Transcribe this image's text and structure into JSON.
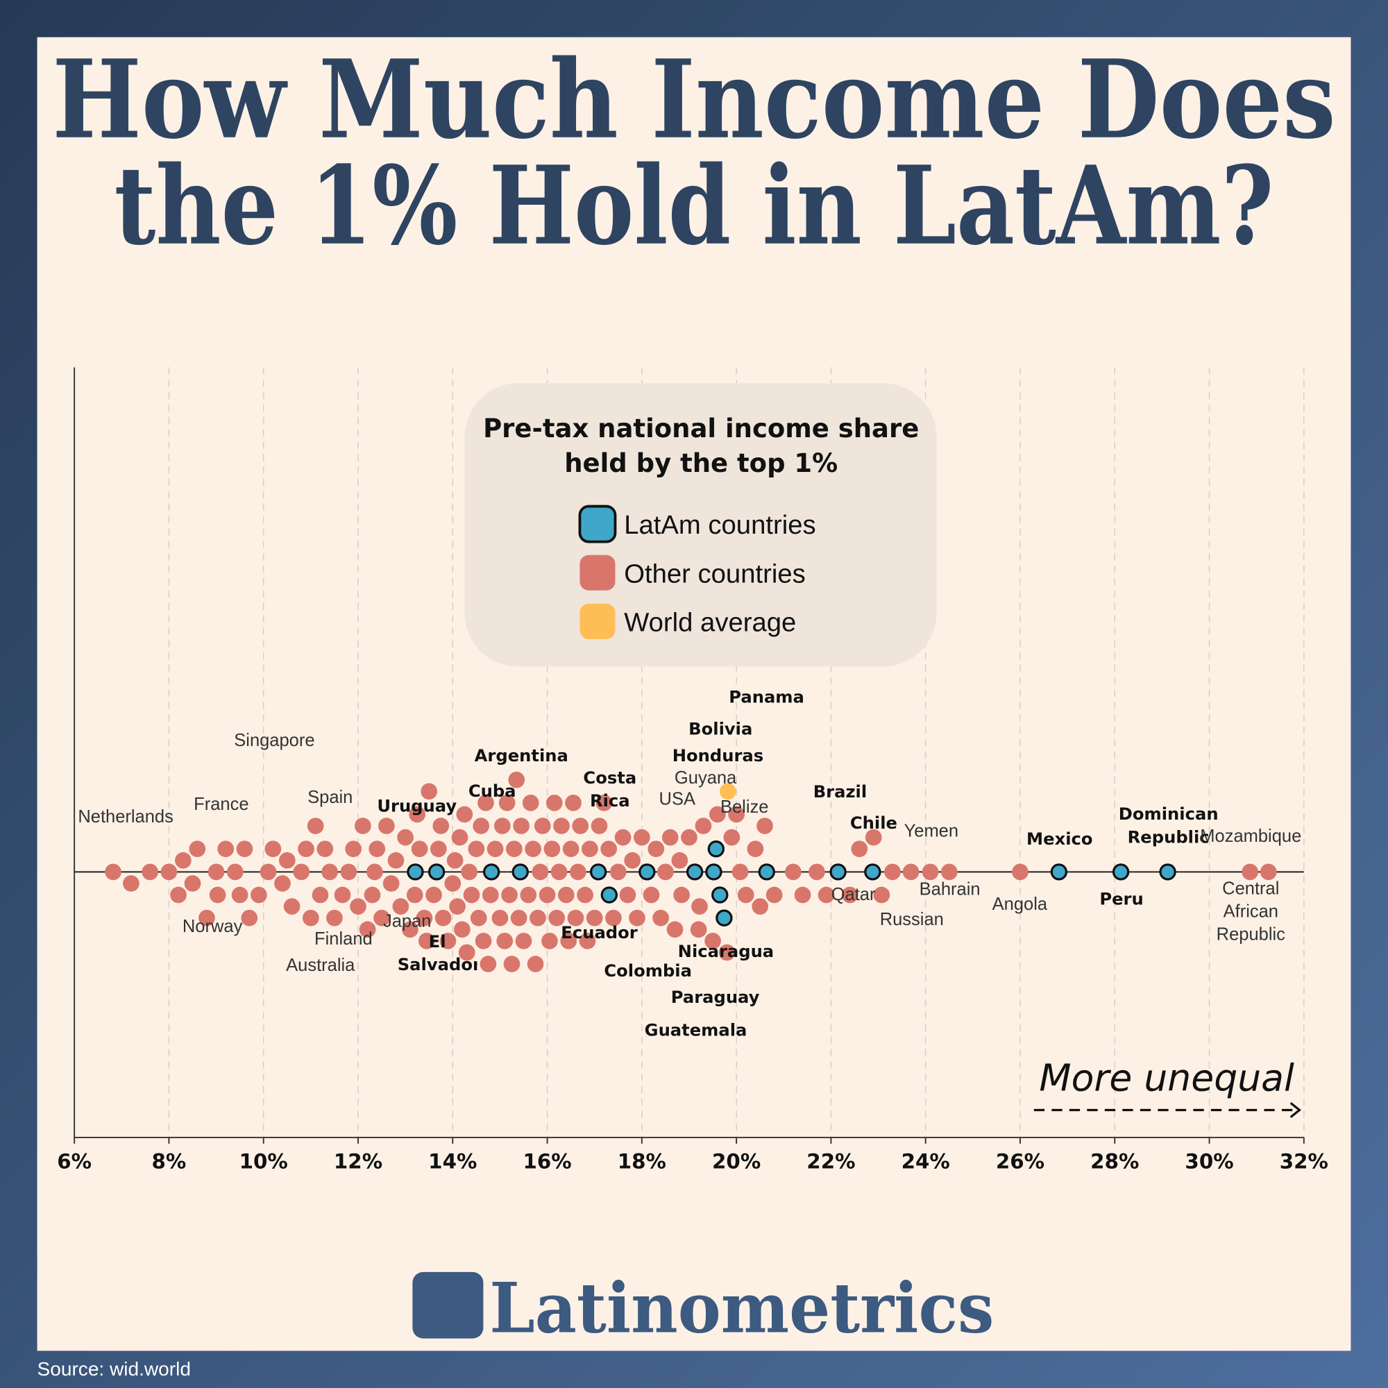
{
  "title_lines": [
    "How Much Income Does",
    "the 1% Hold in LatAm?"
  ],
  "chart_data": {
    "type": "beeswarm",
    "legend_title_lines": [
      "Pre-tax national income share",
      "held by the top 1%"
    ],
    "annotation": "More unequal",
    "xlim": [
      6,
      32
    ],
    "xticks": [
      {
        "value": 6,
        "label": "6%"
      },
      {
        "value": 8,
        "label": "8%"
      },
      {
        "value": 10,
        "label": "10%"
      },
      {
        "value": 12,
        "label": "12%"
      },
      {
        "value": 14,
        "label": "14%"
      },
      {
        "value": 16,
        "label": "16%"
      },
      {
        "value": 18,
        "label": "18%"
      },
      {
        "value": 20,
        "label": "20%"
      },
      {
        "value": 22,
        "label": "22%"
      },
      {
        "value": 24,
        "label": "24%"
      },
      {
        "value": 26,
        "label": "26%"
      },
      {
        "value": 28,
        "label": "28%"
      },
      {
        "value": 30,
        "label": "30%"
      },
      {
        "value": 32,
        "label": "32%"
      }
    ],
    "grid": true,
    "series": [
      {
        "name": "LatAm countries",
        "color": "#3fa7c9",
        "points": [
          {
            "label": "Uruguay",
            "value": 13.21
          },
          {
            "label": "El Salvador",
            "value": 13.66
          },
          {
            "label": "Cuba",
            "value": 14.82
          },
          {
            "label": "Argentina",
            "value": 15.43
          },
          {
            "label": "Ecuador",
            "value": 17.08
          },
          {
            "label": "Costa Rica",
            "value": 17.31
          },
          {
            "label": "Colombia",
            "value": 18.11
          },
          {
            "label": "Guatemala",
            "value": 19.12
          },
          {
            "label": "Paraguay",
            "value": 19.52
          },
          {
            "label": "Bolivia",
            "value": 19.65
          },
          {
            "label": "Honduras",
            "value": 19.57
          },
          {
            "label": "Nicaragua",
            "value": 19.74
          },
          {
            "label": "Panama",
            "value": 20.64
          },
          {
            "label": "Brazil",
            "value": 22.15
          },
          {
            "label": "Chile",
            "value": 22.88
          },
          {
            "label": "Mexico",
            "value": 26.82
          },
          {
            "label": "Peru",
            "value": 28.13
          },
          {
            "label": "Dominican Republic",
            "value": 29.12
          }
        ]
      },
      {
        "name": "Other countries",
        "color": "#d9766b",
        "points": [
          {
            "label": "Netherlands",
            "value": 6.82
          },
          {
            "label": "Norway",
            "value": 9.0
          },
          {
            "label": "France",
            "value": 9.03
          },
          {
            "label": "Singapore",
            "value": 10.1
          },
          {
            "label": "Spain",
            "value": 11.4
          },
          {
            "label": "Finland",
            "value": 11.67
          },
          {
            "label": "Australia",
            "value": 11.2
          },
          {
            "label": "Japan",
            "value": 12.35
          },
          {
            "label": "USA",
            "value": 18.84
          },
          {
            "label": "Guyana",
            "value": 19.22
          },
          {
            "label": "Belize",
            "value": 20.08
          },
          {
            "label": "Yemen",
            "value": 23.3
          },
          {
            "label": "Qatar",
            "value": 23.07
          },
          {
            "label": "Russian",
            "value": 23.69
          },
          {
            "label": "Bahrain",
            "value": 24.5
          },
          {
            "label": "Angola",
            "value": 26.0
          },
          {
            "label": "Mozambique",
            "value": 31.25
          },
          {
            "label": "Central African Republic",
            "value": 30.86
          },
          {
            "value": 7.2
          },
          {
            "value": 7.6
          },
          {
            "value": 8.0
          },
          {
            "value": 8.2
          },
          {
            "value": 8.3
          },
          {
            "value": 8.5
          },
          {
            "value": 8.6
          },
          {
            "value": 8.8
          },
          {
            "value": 9.2
          },
          {
            "value": 9.4
          },
          {
            "value": 9.5
          },
          {
            "value": 9.6
          },
          {
            "value": 9.7
          },
          {
            "value": 9.9
          },
          {
            "value": 10.2
          },
          {
            "value": 10.4
          },
          {
            "value": 10.5
          },
          {
            "value": 10.6
          },
          {
            "value": 10.8
          },
          {
            "value": 10.9
          },
          {
            "value": 11.0
          },
          {
            "value": 11.1
          },
          {
            "value": 11.3
          },
          {
            "value": 11.5
          },
          {
            "value": 11.8
          },
          {
            "value": 11.9
          },
          {
            "value": 12.0
          },
          {
            "value": 12.1
          },
          {
            "value": 12.2
          },
          {
            "value": 12.3
          },
          {
            "value": 12.4
          },
          {
            "value": 12.5
          },
          {
            "value": 12.6
          },
          {
            "value": 12.7
          },
          {
            "value": 12.8
          },
          {
            "value": 12.9
          },
          {
            "value": 13.0
          },
          {
            "value": 13.1
          },
          {
            "value": 13.2
          },
          {
            "value": 13.25
          },
          {
            "value": 13.3
          },
          {
            "value": 13.4
          },
          {
            "value": 13.45
          },
          {
            "value": 13.5
          },
          {
            "value": 13.6
          },
          {
            "value": 13.7
          },
          {
            "value": 13.75
          },
          {
            "value": 13.8
          },
          {
            "value": 13.9
          },
          {
            "value": 14.0
          },
          {
            "value": 14.05
          },
          {
            "value": 14.1
          },
          {
            "value": 14.15
          },
          {
            "value": 14.2
          },
          {
            "value": 14.25
          },
          {
            "value": 14.3
          },
          {
            "value": 14.35
          },
          {
            "value": 14.4
          },
          {
            "value": 14.5
          },
          {
            "value": 14.55
          },
          {
            "value": 14.6
          },
          {
            "value": 14.65
          },
          {
            "value": 14.7
          },
          {
            "value": 14.75
          },
          {
            "value": 14.8
          },
          {
            "value": 14.9
          },
          {
            "value": 15.0
          },
          {
            "value": 15.05
          },
          {
            "value": 15.1
          },
          {
            "value": 15.15
          },
          {
            "value": 15.2
          },
          {
            "value": 15.25
          },
          {
            "value": 15.3
          },
          {
            "value": 15.35
          },
          {
            "value": 15.4
          },
          {
            "value": 15.45
          },
          {
            "value": 15.5
          },
          {
            "value": 15.6
          },
          {
            "value": 15.65
          },
          {
            "value": 15.7
          },
          {
            "value": 15.75
          },
          {
            "value": 15.8
          },
          {
            "value": 15.85
          },
          {
            "value": 15.9
          },
          {
            "value": 16.0
          },
          {
            "value": 16.05
          },
          {
            "value": 16.1
          },
          {
            "value": 16.15
          },
          {
            "value": 16.2
          },
          {
            "value": 16.25
          },
          {
            "value": 16.3
          },
          {
            "value": 16.4
          },
          {
            "value": 16.45
          },
          {
            "value": 16.5
          },
          {
            "value": 16.55
          },
          {
            "value": 16.6
          },
          {
            "value": 16.65
          },
          {
            "value": 16.7
          },
          {
            "value": 16.8
          },
          {
            "value": 16.85
          },
          {
            "value": 16.9
          },
          {
            "value": 17.0
          },
          {
            "value": 17.1
          },
          {
            "value": 17.2
          },
          {
            "value": 17.3
          },
          {
            "value": 17.4
          },
          {
            "value": 17.5
          },
          {
            "value": 17.6
          },
          {
            "value": 17.7
          },
          {
            "value": 17.8
          },
          {
            "value": 17.9
          },
          {
            "value": 18.0
          },
          {
            "value": 18.2
          },
          {
            "value": 18.3
          },
          {
            "value": 18.4
          },
          {
            "value": 18.5
          },
          {
            "value": 18.6
          },
          {
            "value": 18.7
          },
          {
            "value": 18.8
          },
          {
            "value": 19.0
          },
          {
            "value": 19.2
          },
          {
            "value": 19.3
          },
          {
            "value": 19.5
          },
          {
            "value": 19.6
          },
          {
            "value": 19.8
          },
          {
            "value": 19.9
          },
          {
            "value": 20.0
          },
          {
            "value": 20.2
          },
          {
            "value": 20.4
          },
          {
            "value": 20.5
          },
          {
            "value": 20.6
          },
          {
            "value": 20.8
          },
          {
            "value": 21.2
          },
          {
            "value": 21.4
          },
          {
            "value": 21.7
          },
          {
            "value": 21.9
          },
          {
            "value": 22.4
          },
          {
            "value": 22.6
          },
          {
            "value": 22.9
          },
          {
            "value": 24.1
          }
        ]
      },
      {
        "name": "World average",
        "color": "#ffbe55",
        "points": [
          {
            "value": 19.82
          }
        ]
      }
    ]
  },
  "brand": "Latinometrics",
  "source": "Source: wid.world"
}
